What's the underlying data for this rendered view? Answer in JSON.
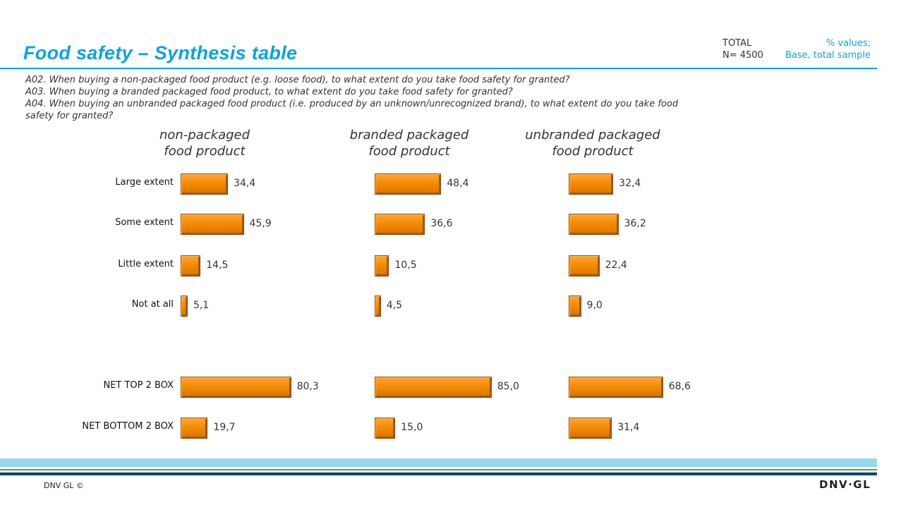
{
  "header": {
    "title": "Food safety – Synthesis table",
    "total_label": "TOTAL",
    "n_label": "N= 4500",
    "base_line1": "% values;",
    "base_line2": "Base, total sample"
  },
  "questions": [
    "A02. When buying a non-packaged food product (e.g. loose food), to what extent do you take food safety for granted?",
    "A03. When buying a branded packaged food product, to what extent do you take food safety for granted?",
    "A04. When buying an unbranded packaged food product (i.e. produced by an unknown/unrecognized brand), to what extent do you take food safety for granted?"
  ],
  "chart_data": {
    "type": "bar",
    "orientation": "horizontal",
    "categories": [
      "Large extent",
      "Some extent",
      "Little extent",
      "Not at all",
      "NET TOP 2 BOX",
      "NET BOTTOM 2 BOX"
    ],
    "series": [
      {
        "name": "non-packaged food product",
        "values": [
          34.4,
          45.9,
          14.5,
          5.1,
          80.3,
          19.7
        ],
        "labels": [
          "34,4",
          "45,9",
          "14,5",
          "5,1",
          "80,3",
          "19,7"
        ]
      },
      {
        "name": "branded packaged food product",
        "values": [
          48.4,
          36.6,
          10.5,
          4.5,
          85.0,
          15.0
        ],
        "labels": [
          "48,4",
          "36,6",
          "10,5",
          "4,5",
          "85,0",
          "15,0"
        ]
      },
      {
        "name": "unbranded packaged food product",
        "values": [
          32.4,
          36.2,
          22.4,
          9.0,
          68.6,
          31.4
        ],
        "labels": [
          "32,4",
          "36,2",
          "22,4",
          "9,0",
          "68,6",
          "31,4"
        ]
      }
    ],
    "series_heads": [
      [
        "non-packaged",
        "food product"
      ],
      [
        "branded packaged",
        "food product"
      ],
      [
        "unbranded packaged",
        "food product"
      ]
    ],
    "bar_color": "#f28a00",
    "xlim": [
      0,
      100
    ],
    "grid": false
  },
  "footer": {
    "copyright": "DNV GL ©",
    "logo": "DNV·GL"
  }
}
